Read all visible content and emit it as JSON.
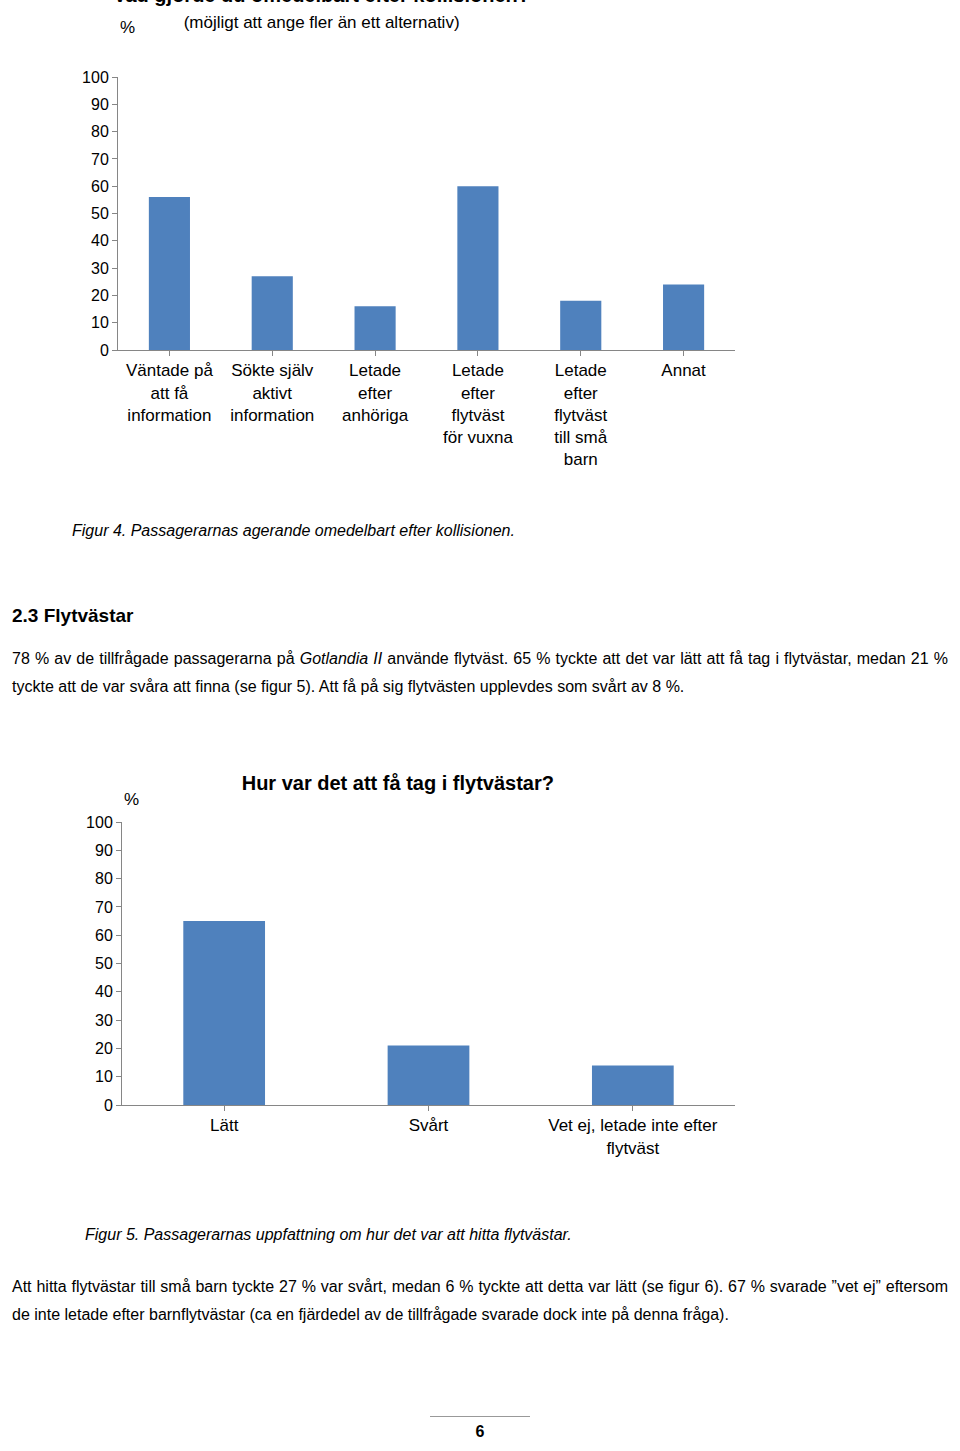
{
  "chart_data": [
    {
      "type": "bar",
      "title": "Vad gjorde du omedelbart efter kollisionen?",
      "subtitle": "(möjligt att ange fler än ett alternativ)",
      "y_label": "%",
      "categories": [
        "Väntade på att få information",
        "Sökte själv aktivt information",
        "Letade efter anhöriga",
        "Letade efter flytväst för vuxna",
        "Letade efter flytväst till små barn",
        "Annat"
      ],
      "values": [
        56,
        27,
        16,
        60,
        18,
        24
      ],
      "color": "#4f81bd",
      "ylim": [
        0,
        100
      ],
      "yticks": [
        0,
        10,
        20,
        30,
        40,
        50,
        60,
        70,
        80,
        90,
        100
      ],
      "grid": false
    },
    {
      "type": "bar",
      "title": "Hur var det att få tag i flytvästar?",
      "y_label": "%",
      "categories": [
        "Lätt",
        "Svårt",
        "Vet ej, letade inte efter flytväst"
      ],
      "values": [
        65,
        21,
        14
      ],
      "color": "#4f81bd",
      "ylim": [
        0,
        100
      ],
      "yticks": [
        0,
        10,
        20,
        30,
        40,
        50,
        60,
        70,
        80,
        90,
        100
      ],
      "grid": false
    }
  ],
  "document": {
    "figure_4_caption": "Figur 4. Passagerarnas agerande omedelbart efter kollisionen.",
    "heading": "2.3 Flytvästar",
    "paragraph_1": [
      {
        "text": "78 % av de tillfrågade passagerarna på "
      },
      {
        "text": "Gotlandia II",
        "italic": true
      },
      {
        "text": " använde flytväst. 65 % tyckte att det var lätt att få tag i flytvästar, medan 21 % tyckte att de var svåra att finna (se figur 5). Att få på sig flytvästen upplevdes som svårt av 8 %."
      }
    ],
    "figure_5_caption": "Figur 5. Passagerarnas uppfattning om hur det var att hitta flytvästar.",
    "paragraph_2": [
      {
        "text": "Att hitta flytvästar till små barn tyckte 27 % var svårt, medan 6 % tyckte att detta var lätt (se figur 6). 67 % svarade ”vet ej” eftersom de inte letade efter barnflytvästar (ca en fjärdedel av de tillfrågade svarade dock inte på denna fråga)."
      }
    ],
    "page_number": "6"
  }
}
